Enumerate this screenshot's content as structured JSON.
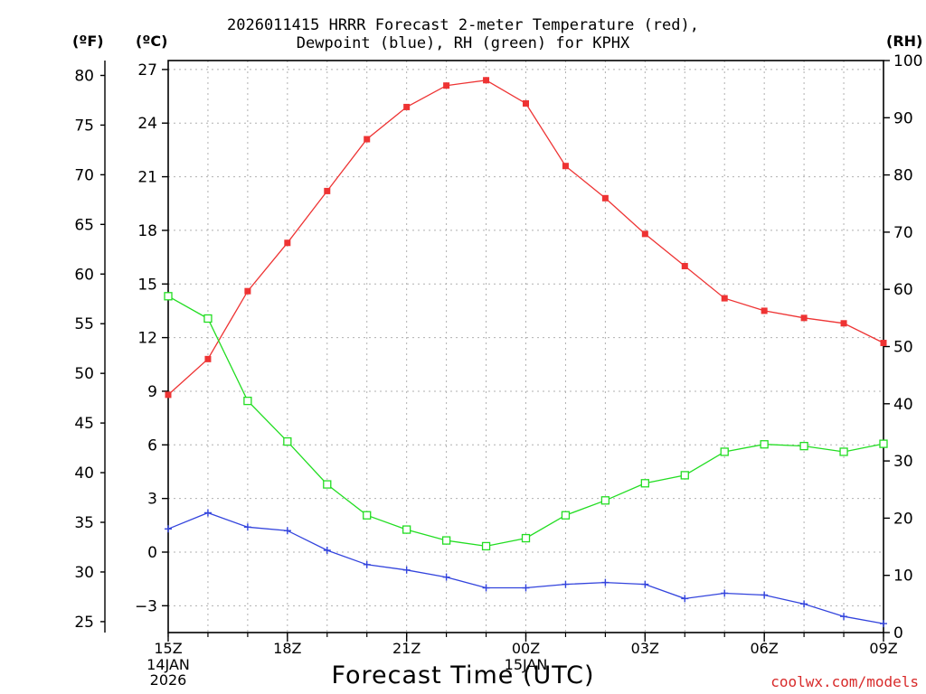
{
  "chart_data": {
    "type": "line",
    "title": [
      "2026011415 HRRR Forecast 2-meter Temperature (red),",
      "Dewpoint (blue), RH (green) for KPHX"
    ],
    "xlabel": "Forecast Time (UTC)",
    "credit": "coolwx.com/models",
    "unit_labels": {
      "fahrenheit": "(ºF)",
      "celsius": "(ºC)",
      "rh": "(RH)"
    },
    "x_hours": [
      0,
      1,
      2,
      3,
      4,
      5,
      6,
      7,
      8,
      9,
      10,
      11,
      12,
      13,
      14,
      15,
      16,
      17,
      18
    ],
    "x_ticks": [
      {
        "hour": 0,
        "label": "15Z",
        "sub": [
          "14JAN",
          "2026"
        ]
      },
      {
        "hour": 3,
        "label": "18Z",
        "sub": []
      },
      {
        "hour": 6,
        "label": "21Z",
        "sub": []
      },
      {
        "hour": 9,
        "label": "00Z",
        "sub": [
          "15JAN"
        ]
      },
      {
        "hour": 12,
        "label": "03Z",
        "sub": []
      },
      {
        "hour": 15,
        "label": "06Z",
        "sub": []
      },
      {
        "hour": 18,
        "label": "09Z",
        "sub": []
      }
    ],
    "y_celsius": {
      "range": [
        -4.5,
        27.5
      ],
      "ticks": [
        -3,
        0,
        3,
        6,
        9,
        12,
        15,
        18,
        21,
        24,
        27
      ]
    },
    "y_fahrenheit": {
      "ticks": [
        25,
        30,
        35,
        40,
        45,
        50,
        55,
        60,
        65,
        70,
        75,
        80
      ]
    },
    "y_rh": {
      "range": [
        0,
        100
      ],
      "ticks": [
        0,
        10,
        20,
        30,
        40,
        50,
        60,
        70,
        80,
        90,
        100
      ]
    },
    "series": [
      {
        "name": "Temperature",
        "axis": "celsius",
        "color": "#ee3333",
        "marker": "filled-square",
        "values": [
          8.8,
          10.8,
          14.6,
          17.3,
          20.2,
          23.1,
          24.9,
          26.1,
          26.4,
          25.1,
          21.6,
          19.8,
          17.8,
          16.0,
          14.2,
          13.5,
          13.1,
          12.8,
          11.7
        ]
      },
      {
        "name": "Dewpoint",
        "axis": "celsius",
        "color": "#3344dd",
        "marker": "plus",
        "values": [
          1.3,
          2.2,
          1.4,
          1.2,
          0.1,
          -0.7,
          -1.0,
          -1.4,
          -2.0,
          -2.0,
          -1.8,
          -1.7,
          -1.8,
          -2.6,
          -2.3,
          -2.4,
          -2.9,
          -3.6,
          -4.0
        ]
      },
      {
        "name": "RH",
        "axis": "rh",
        "color": "#22dd22",
        "marker": "open-square",
        "values": [
          58.8,
          54.9,
          40.5,
          33.4,
          25.9,
          20.5,
          18.0,
          16.1,
          15.1,
          16.5,
          20.5,
          23.1,
          26.1,
          27.5,
          31.6,
          32.9,
          32.6,
          31.6,
          33.0
        ]
      }
    ]
  }
}
